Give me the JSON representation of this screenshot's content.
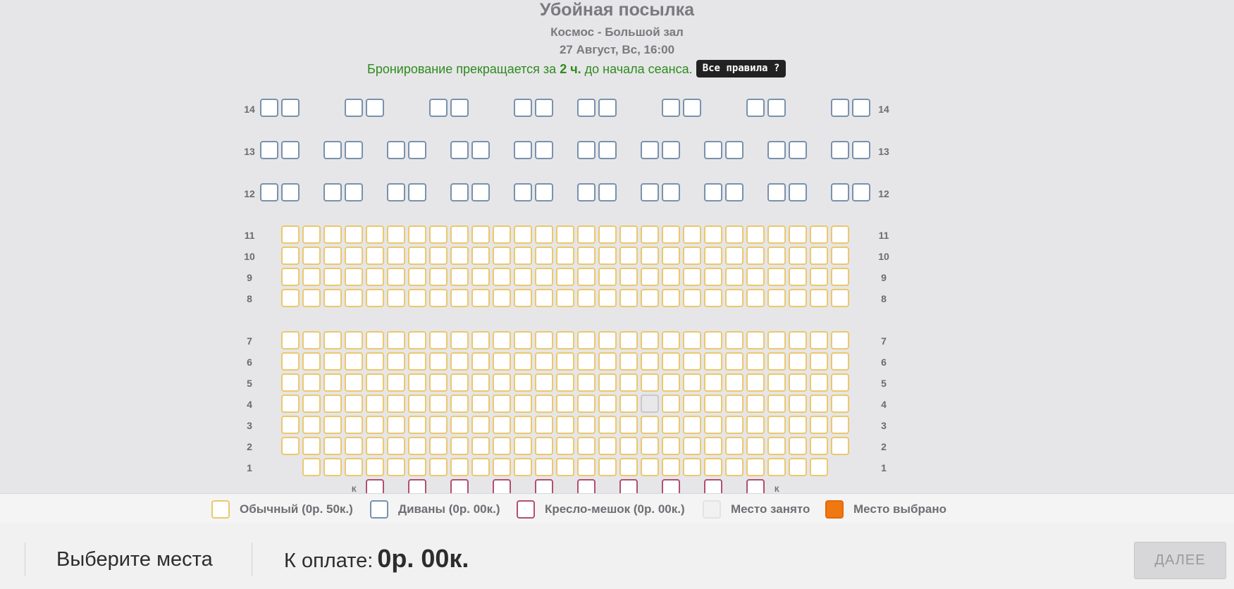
{
  "header": {
    "title": "Убойная посылка",
    "hall": "Космос - Большой зал",
    "datetime": "27 Август, Вс, 16:00",
    "notice_before": "Бронирование прекращается за",
    "notice_hours": "2 ч.",
    "notice_after": "до начала сеанса.",
    "rules_button": "Все правила ?"
  },
  "seat_map": {
    "sofa_rows": [
      "14",
      "13",
      "12"
    ],
    "regular_rows": [
      "11",
      "10",
      "9",
      "8",
      "7",
      "6",
      "5",
      "4",
      "3",
      "2",
      "1"
    ],
    "bag_row_label": "К",
    "taken_seat": {
      "row": "4",
      "seat_index_from_left": 17
    },
    "colors": {
      "regular": "#ecc86c",
      "sofa": "#7991ad",
      "bag": "#b0506f",
      "taken": "#c9c9cc",
      "selected": "#f07810"
    }
  },
  "legend": {
    "regular": "Обычный (0р. 50к.)",
    "sofa": "Диваны (0р. 00к.)",
    "bag": "Кресло-мешок (0р. 00к.)",
    "taken": "Место занято",
    "selected": "Место выбрано"
  },
  "footer": {
    "choose_label": "Выберите места",
    "pay_label": "К оплате:",
    "pay_amount": "0р. 00к.",
    "next_button": "ДАЛЕЕ"
  }
}
